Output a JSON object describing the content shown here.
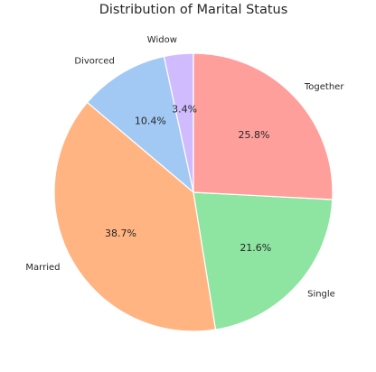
{
  "chart_data": {
    "type": "pie",
    "title": "Distribution of Marital Status",
    "start_angle_deg": 90,
    "direction": "counterclockwise",
    "slices": [
      {
        "label": "Widow",
        "value": 3.4,
        "pct_label": "3.4%",
        "color": "#d0bbff"
      },
      {
        "label": "Divorced",
        "value": 10.4,
        "pct_label": "10.4%",
        "color": "#a1c9f4"
      },
      {
        "label": "Married",
        "value": 38.7,
        "pct_label": "38.7%",
        "color": "#ffb482"
      },
      {
        "label": "Single",
        "value": 21.6,
        "pct_label": "21.6%",
        "color": "#8de5a1"
      },
      {
        "label": "Together",
        "value": 25.8,
        "pct_label": "25.8%",
        "color": "#ff9f9b"
      }
    ]
  }
}
